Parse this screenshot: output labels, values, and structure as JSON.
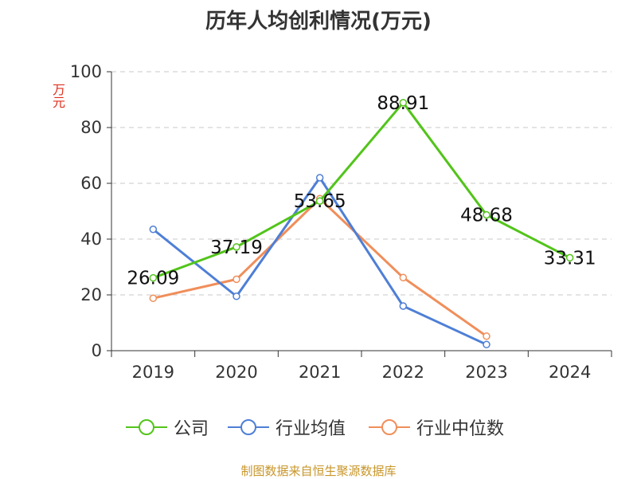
{
  "chart_data": {
    "type": "line",
    "title": "历年人均创利情况(万元)",
    "ylabel": "万元",
    "ylim": [
      0,
      100
    ],
    "yticks": [
      0,
      20,
      40,
      60,
      80,
      100
    ],
    "categories": [
      "2019",
      "2020",
      "2021",
      "2022",
      "2023",
      "2024"
    ],
    "grid": true,
    "legend_position": "bottom",
    "series": [
      {
        "name": "公司",
        "color": "#52c41a",
        "values": [
          26.09,
          37.19,
          53.65,
          88.91,
          48.68,
          33.31
        ],
        "labels": true
      },
      {
        "name": "行业均值",
        "color": "#4e7fd6",
        "values": [
          43.5,
          19.5,
          62.0,
          16.0,
          2.2,
          null
        ],
        "labels": false
      },
      {
        "name": "行业中位数",
        "color": "#f08e5a",
        "values": [
          18.8,
          25.6,
          54.5,
          26.2,
          5.2,
          null
        ],
        "labels": false
      }
    ]
  },
  "source": "制图数据来自恒生聚源数据库"
}
